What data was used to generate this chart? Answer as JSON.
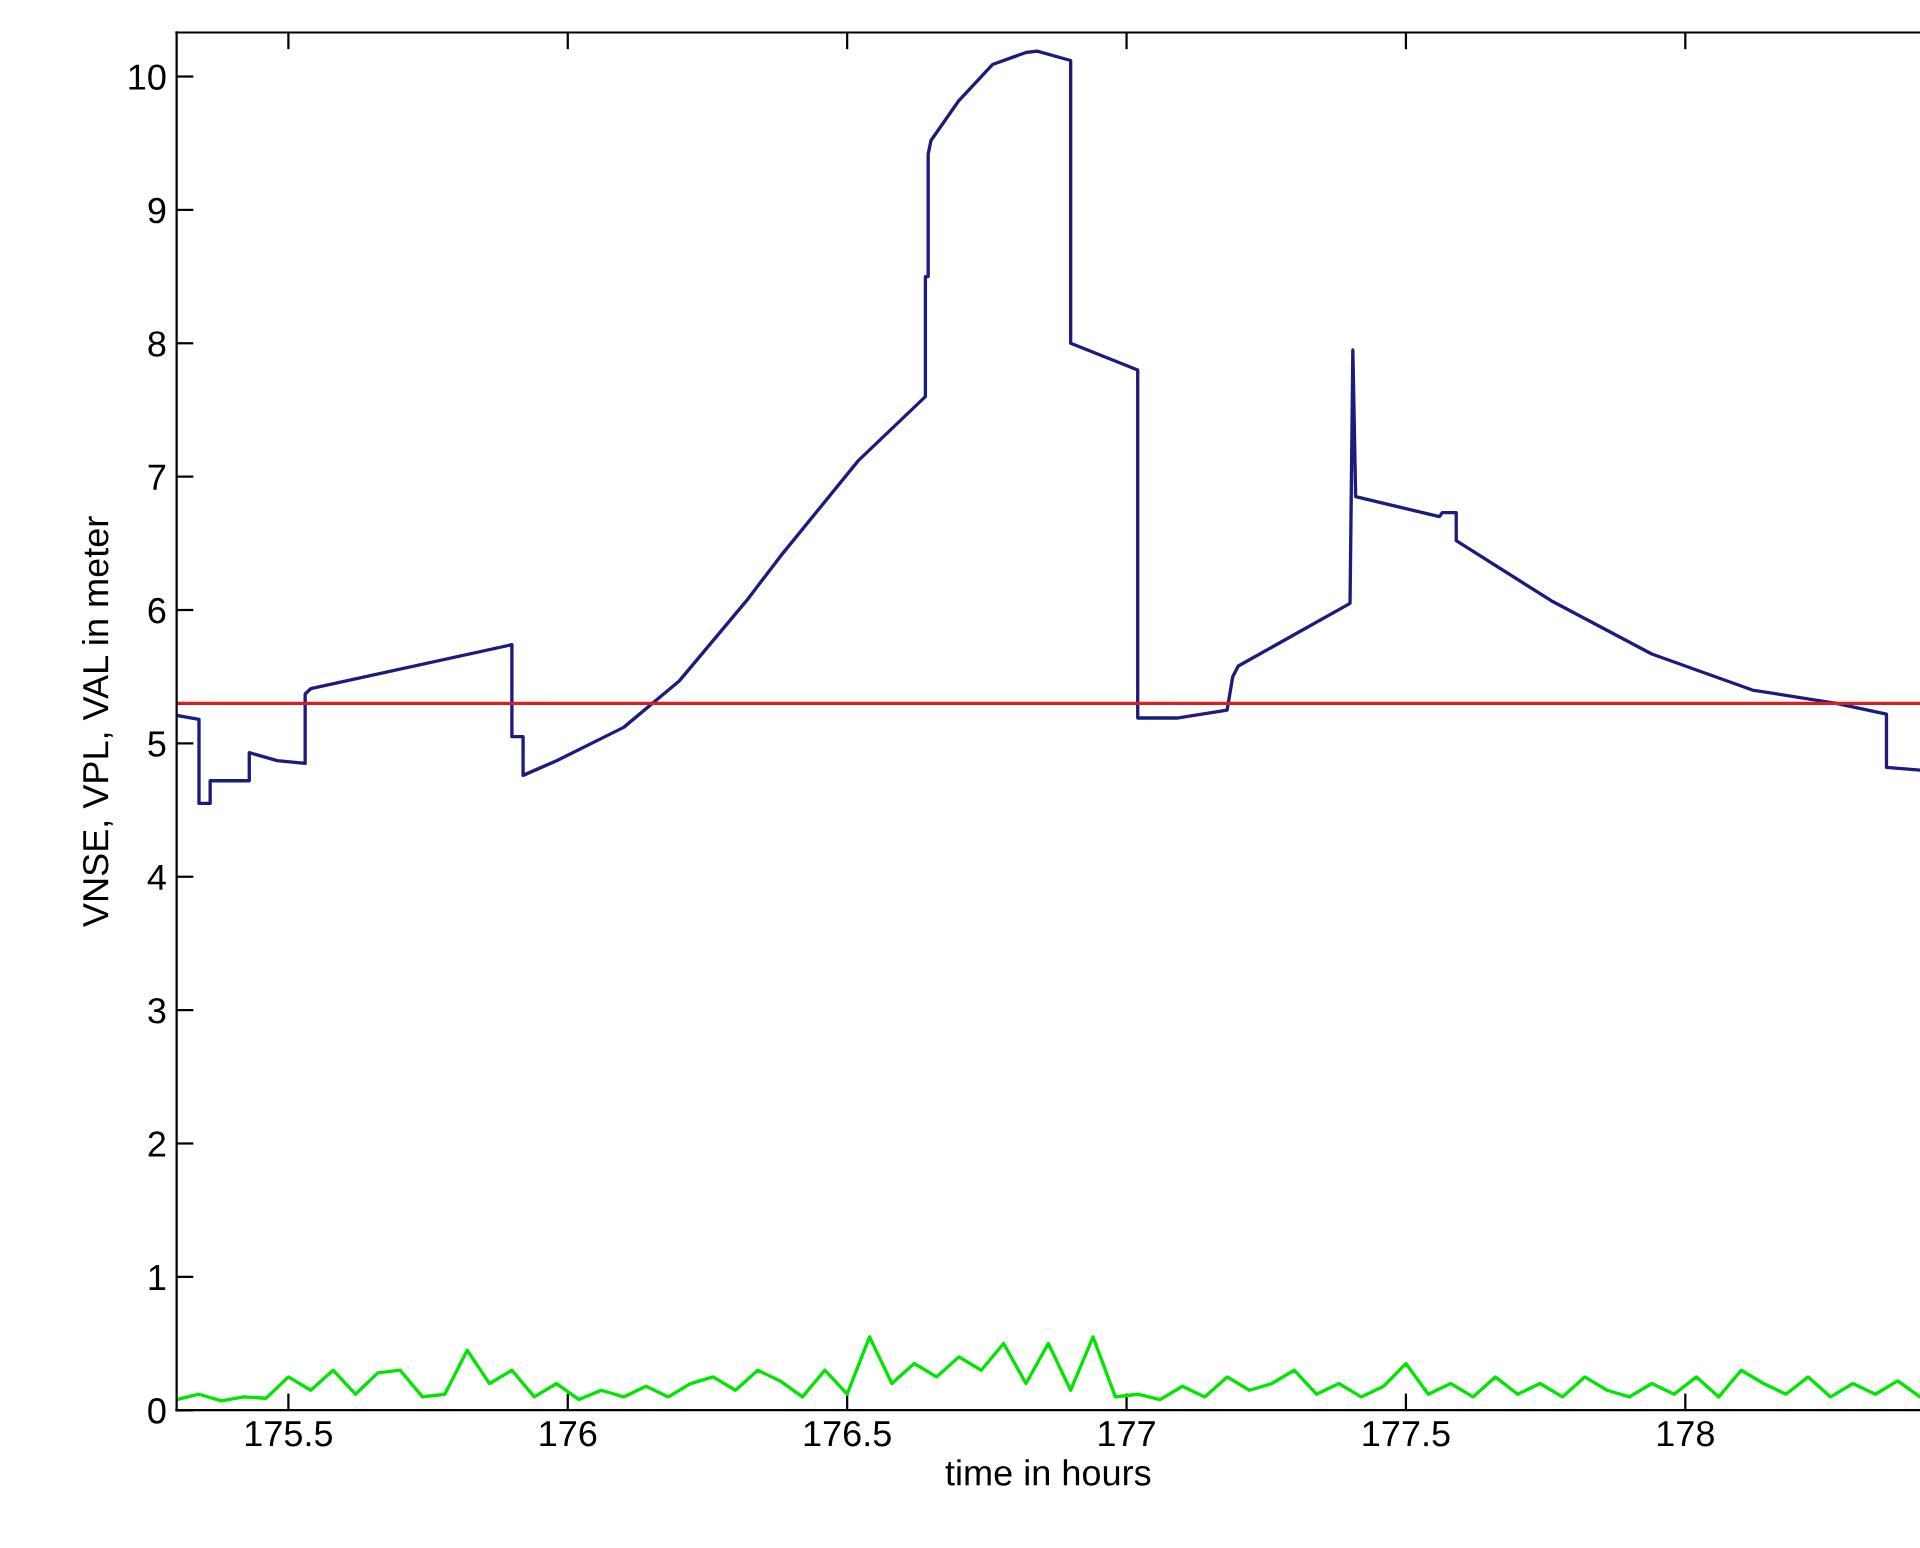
{
  "chart_data": {
    "type": "line",
    "xlabel": "time in hours",
    "ylabel": "VNSE, VPL, VAL in meter",
    "xlim": [
      175.3,
      178.42
    ],
    "ylim": [
      0,
      10.33
    ],
    "xticks": [
      175.5,
      176,
      176.5,
      177,
      177.5,
      178
    ],
    "yticks": [
      0,
      1,
      2,
      3,
      4,
      5,
      6,
      7,
      8,
      9,
      10
    ],
    "grid": false,
    "legend": false,
    "marker": "none",
    "line_style": "solid",
    "series": [
      {
        "color": "#1c1c7c",
        "x": [
          175.3,
          175.34,
          175.34,
          175.36,
          175.36,
          175.43,
          175.43,
          175.48,
          175.53,
          175.53,
          175.54,
          175.9,
          175.9,
          175.92,
          175.92,
          175.98,
          176.1,
          176.2,
          176.32,
          176.38,
          176.52,
          176.64,
          176.64,
          176.645,
          176.645,
          176.65,
          176.7,
          176.76,
          176.82,
          176.84,
          176.9,
          176.9,
          177.02,
          177.02,
          177.09,
          177.18,
          177.19,
          177.2,
          177.4,
          177.405,
          177.41,
          177.41,
          177.56,
          177.565,
          177.59,
          177.59,
          177.76,
          177.94,
          178.12,
          178.27,
          178.36,
          178.36,
          178.42
        ],
        "values": [
          5.21,
          5.18,
          4.55,
          4.55,
          4.72,
          4.72,
          4.93,
          4.87,
          4.85,
          5.37,
          5.41,
          5.74,
          5.05,
          5.05,
          4.76,
          4.87,
          5.12,
          5.47,
          6.07,
          6.4,
          7.12,
          7.6,
          8.5,
          8.5,
          9.42,
          9.52,
          9.82,
          10.09,
          10.18,
          10.19,
          10.12,
          8.0,
          7.8,
          5.19,
          5.19,
          5.25,
          5.5,
          5.58,
          6.05,
          7.95,
          6.85,
          6.85,
          6.7,
          6.73,
          6.73,
          6.52,
          6.07,
          5.67,
          5.4,
          5.3,
          5.22,
          4.82,
          4.8
        ]
      },
      {
        "color": "#00e600",
        "x": [
          175.3,
          175.34,
          175.38,
          175.42,
          175.46,
          175.5,
          175.54,
          175.58,
          175.62,
          175.66,
          175.7,
          175.74,
          175.78,
          175.82,
          175.86,
          175.9,
          175.94,
          175.98,
          176.02,
          176.06,
          176.1,
          176.14,
          176.18,
          176.22,
          176.26,
          176.3,
          176.34,
          176.38,
          176.42,
          176.46,
          176.5,
          176.54,
          176.58,
          176.62,
          176.66,
          176.7,
          176.74,
          176.78,
          176.82,
          176.86,
          176.9,
          176.94,
          176.98,
          177.02,
          177.06,
          177.1,
          177.14,
          177.18,
          177.22,
          177.26,
          177.3,
          177.34,
          177.38,
          177.42,
          177.46,
          177.5,
          177.54,
          177.58,
          177.62,
          177.66,
          177.7,
          177.74,
          177.78,
          177.82,
          177.86,
          177.9,
          177.94,
          177.98,
          178.02,
          178.06,
          178.1,
          178.14,
          178.18,
          178.22,
          178.26,
          178.3,
          178.34,
          178.38,
          178.42
        ],
        "values": [
          0.08,
          0.12,
          0.07,
          0.1,
          0.09,
          0.25,
          0.15,
          0.3,
          0.12,
          0.28,
          0.3,
          0.1,
          0.12,
          0.45,
          0.2,
          0.3,
          0.1,
          0.2,
          0.08,
          0.15,
          0.1,
          0.18,
          0.1,
          0.2,
          0.25,
          0.15,
          0.3,
          0.22,
          0.1,
          0.3,
          0.12,
          0.55,
          0.2,
          0.35,
          0.25,
          0.4,
          0.3,
          0.5,
          0.2,
          0.5,
          0.15,
          0.55,
          0.1,
          0.12,
          0.08,
          0.18,
          0.1,
          0.25,
          0.15,
          0.2,
          0.3,
          0.12,
          0.2,
          0.1,
          0.18,
          0.35,
          0.12,
          0.2,
          0.1,
          0.25,
          0.12,
          0.2,
          0.1,
          0.25,
          0.15,
          0.1,
          0.2,
          0.12,
          0.25,
          0.1,
          0.3,
          0.2,
          0.12,
          0.25,
          0.1,
          0.2,
          0.12,
          0.22,
          0.1
        ]
      }
    ],
    "ref_lines": [
      {
        "axis": "y",
        "value": 5.3,
        "color": "#d42020"
      }
    ]
  }
}
